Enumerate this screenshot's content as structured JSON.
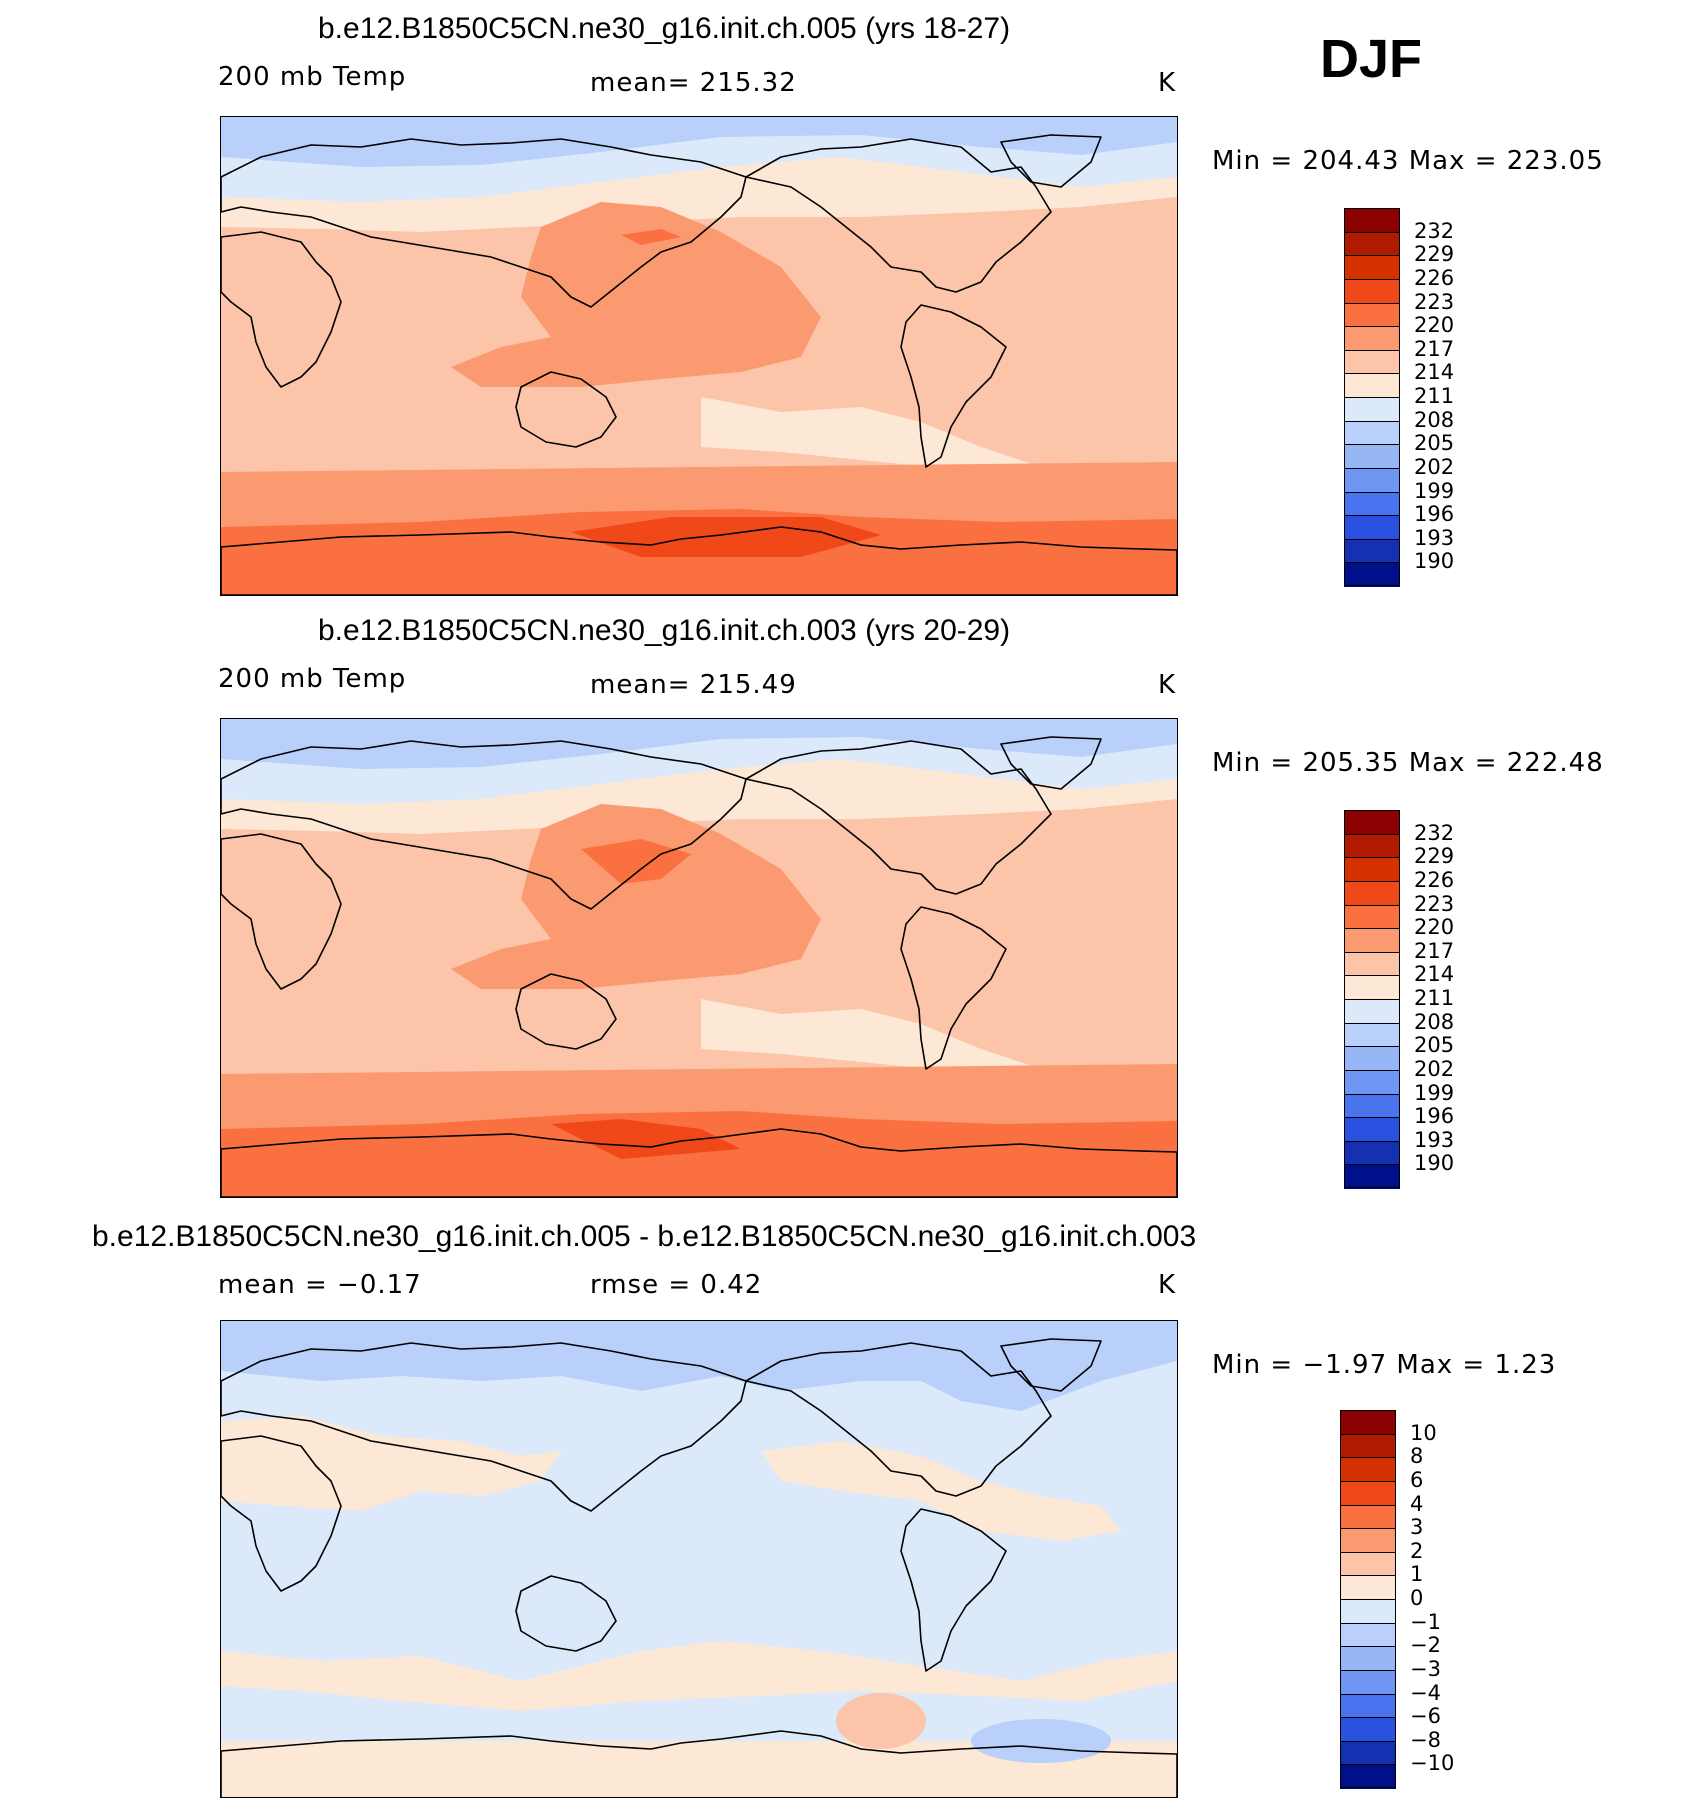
{
  "season": "DJF",
  "panels": [
    {
      "title": "b.e12.B1850C5CN.ne30_g16.init.ch.005 (yrs 18-27)",
      "left_label": "200 mb Temp",
      "center_label": "mean=  215.32",
      "right_label": "K",
      "minmax": "Min  =  204.43  Max  =  223.05",
      "map_style": "a"
    },
    {
      "title": "b.e12.B1850C5CN.ne30_g16.init.ch.003 (yrs 20-29)",
      "left_label": "200 mb Temp",
      "center_label": "mean=  215.49",
      "right_label": "K",
      "minmax": "Min  =  205.35  Max  =  222.48",
      "map_style": "b"
    },
    {
      "title": "b.e12.B1850C5CN.ne30_g16.init.ch.005 - b.e12.B1850C5CN.ne30_g16.init.ch.003",
      "left_label": "mean  =    −0.17",
      "center_label": "rmse  =     0.42",
      "right_label": "K",
      "minmax": "Min  =    −1.97  Max  =     1.23",
      "map_style": "diff"
    }
  ],
  "colorbars": {
    "abs": {
      "labels": [
        "232",
        "229",
        "226",
        "223",
        "220",
        "217",
        "214",
        "211",
        "208",
        "205",
        "202",
        "199",
        "196",
        "193",
        "190"
      ],
      "colors": [
        "#8b0000",
        "#b01a00",
        "#d53000",
        "#f04818",
        "#fa7040",
        "#fb9a70",
        "#fcc4a8",
        "#fde8d6",
        "#dbe9fb",
        "#b9d0fa",
        "#96b6f6",
        "#6e96f2",
        "#4a74ef",
        "#2a50e0",
        "#1530b0",
        "#00108a"
      ]
    },
    "diff": {
      "labels": [
        "10",
        "8",
        "6",
        "4",
        "3",
        "2",
        "1",
        "0",
        "−1",
        "−2",
        "−3",
        "−4",
        "−6",
        "−8",
        "−10"
      ],
      "colors": [
        "#8b0000",
        "#b01a00",
        "#d53000",
        "#f04818",
        "#fa7040",
        "#fb9a70",
        "#fcc4a8",
        "#fde8d6",
        "#dbe9fb",
        "#b9d0fa",
        "#96b6f6",
        "#6e96f2",
        "#4a74ef",
        "#2a50e0",
        "#1530b0",
        "#00108a"
      ]
    }
  },
  "chart_data": [
    {
      "type": "heatmap",
      "title": "b.e12.B1850C5CN.ne30_g16.init.ch.005 (yrs 18-27)",
      "variable": "200 mb Temp",
      "units": "K",
      "season": "DJF",
      "mean": 215.32,
      "min": 204.43,
      "max": 223.05,
      "contour_levels": [
        190,
        193,
        196,
        199,
        202,
        205,
        208,
        211,
        214,
        217,
        220,
        223,
        226,
        229,
        232
      ]
    },
    {
      "type": "heatmap",
      "title": "b.e12.B1850C5CN.ne30_g16.init.ch.003 (yrs 20-29)",
      "variable": "200 mb Temp",
      "units": "K",
      "season": "DJF",
      "mean": 215.49,
      "min": 205.35,
      "max": 222.48,
      "contour_levels": [
        190,
        193,
        196,
        199,
        202,
        205,
        208,
        211,
        214,
        217,
        220,
        223,
        226,
        229,
        232
      ]
    },
    {
      "type": "heatmap",
      "title": "b.e12.B1850C5CN.ne30_g16.init.ch.005 - b.e12.B1850C5CN.ne30_g16.init.ch.003",
      "units": "K",
      "season": "DJF",
      "mean": -0.17,
      "rmse": 0.42,
      "min": -1.97,
      "max": 1.23,
      "contour_levels": [
        -10,
        -8,
        -6,
        -4,
        -3,
        -2,
        -1,
        0,
        1,
        2,
        3,
        4,
        6,
        8,
        10
      ]
    }
  ]
}
